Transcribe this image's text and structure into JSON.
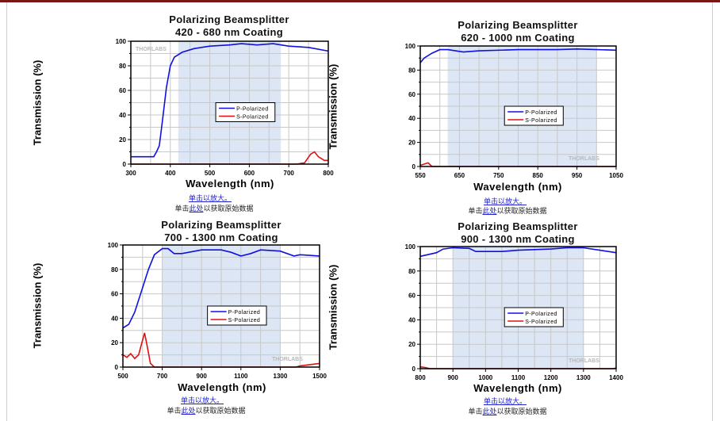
{
  "links": {
    "zoom": "单击以放大。",
    "prefix": "单击",
    "here": "此处",
    "suffix": "以获取原始数据"
  },
  "chart_data": [
    {
      "type": "line",
      "title": [
        "Polarizing Beamsplitter",
        "420 - 680 nm Coating"
      ],
      "xlabel": "Wavelength (nm)",
      "ylabel": "Transmission (%)",
      "xlim": [
        300,
        800
      ],
      "ylim": [
        0,
        100
      ],
      "xticks": [
        300,
        400,
        500,
        600,
        700,
        800
      ],
      "xgrid": [
        300,
        350,
        400,
        450,
        500,
        550,
        600,
        650,
        700,
        750,
        800
      ],
      "yticks": [
        0,
        20,
        40,
        60,
        80,
        100
      ],
      "shaded_range": [
        420,
        680
      ],
      "legend": "center-right",
      "watermark": "THORLABS",
      "series": [
        {
          "name": "P-Polarized",
          "color": "#1010e0",
          "points": [
            [
              300,
              6
            ],
            [
              358,
              6
            ],
            [
              365,
              10
            ],
            [
              372,
              15
            ],
            [
              380,
              35
            ],
            [
              390,
              62
            ],
            [
              400,
              80
            ],
            [
              410,
              87
            ],
            [
              430,
              91
            ],
            [
              460,
              94
            ],
            [
              500,
              96
            ],
            [
              550,
              97
            ],
            [
              580,
              98
            ],
            [
              620,
              97
            ],
            [
              660,
              98
            ],
            [
              700,
              96
            ],
            [
              750,
              95
            ],
            [
              800,
              92
            ]
          ]
        },
        {
          "name": "S-Polarized",
          "color": "#e01010",
          "points": [
            [
              300,
              0
            ],
            [
              720,
              0
            ],
            [
              740,
              1
            ],
            [
              755,
              8
            ],
            [
              765,
              10
            ],
            [
              775,
              6
            ],
            [
              790,
              3
            ],
            [
              800,
              3
            ]
          ]
        }
      ]
    },
    {
      "type": "line",
      "title": [
        "Polarizing Beamsplitter",
        "620 - 1000 nm Coating"
      ],
      "xlabel": "Wavelength (nm)",
      "ylabel": "Transmission (%)",
      "xlim": [
        550,
        1050
      ],
      "ylim": [
        0,
        100
      ],
      "xticks": [
        550,
        650,
        750,
        850,
        950,
        1050
      ],
      "xgrid": [
        550,
        600,
        650,
        700,
        750,
        800,
        850,
        900,
        950,
        1000,
        1050
      ],
      "yticks": [
        0,
        20,
        40,
        60,
        80,
        100
      ],
      "shaded_range": [
        620,
        1000
      ],
      "legend": "center-right",
      "watermark": "THORLABS",
      "series": [
        {
          "name": "P-Polarized",
          "color": "#1010e0",
          "points": [
            [
              550,
              86
            ],
            [
              560,
              90
            ],
            [
              580,
              94
            ],
            [
              600,
              97
            ],
            [
              620,
              97
            ],
            [
              660,
              95
            ],
            [
              700,
              96
            ],
            [
              800,
              97
            ],
            [
              900,
              97
            ],
            [
              950,
              97.5
            ],
            [
              1050,
              96.5
            ]
          ]
        },
        {
          "name": "S-Polarized",
          "color": "#e01010",
          "points": [
            [
              550,
              1
            ],
            [
              560,
              2
            ],
            [
              570,
              3
            ],
            [
              580,
              0
            ],
            [
              1050,
              0
            ]
          ]
        }
      ]
    },
    {
      "type": "line",
      "title": [
        "Polarizing Beamsplitter",
        "700 - 1300 nm Coating"
      ],
      "xlabel": "Wavelength (nm)",
      "ylabel": "Transmission (%)",
      "xlim": [
        500,
        1500
      ],
      "ylim": [
        0,
        100
      ],
      "xticks": [
        500,
        700,
        900,
        1100,
        1300,
        1500
      ],
      "xgrid": [
        500,
        600,
        700,
        800,
        900,
        1000,
        1100,
        1200,
        1300,
        1400,
        1500
      ],
      "yticks": [
        0,
        20,
        40,
        60,
        80,
        100
      ],
      "shaded_range": [
        700,
        1300
      ],
      "legend": "center-right",
      "watermark": "THORLABS",
      "series": [
        {
          "name": "P-Polarized",
          "color": "#1010e0",
          "points": [
            [
              500,
              32
            ],
            [
              530,
              35
            ],
            [
              560,
              45
            ],
            [
              600,
              65
            ],
            [
              630,
              80
            ],
            [
              660,
              92
            ],
            [
              700,
              97
            ],
            [
              730,
              97
            ],
            [
              760,
              93
            ],
            [
              800,
              93
            ],
            [
              900,
              96
            ],
            [
              1000,
              96
            ],
            [
              1050,
              94
            ],
            [
              1100,
              91
            ],
            [
              1150,
              93
            ],
            [
              1200,
              96
            ],
            [
              1300,
              95
            ],
            [
              1370,
              91
            ],
            [
              1400,
              92
            ],
            [
              1500,
              91
            ]
          ]
        },
        {
          "name": "S-Polarized",
          "color": "#e01010",
          "points": [
            [
              500,
              10
            ],
            [
              520,
              8
            ],
            [
              540,
              11
            ],
            [
              560,
              7
            ],
            [
              580,
              10
            ],
            [
              600,
              22
            ],
            [
              610,
              28
            ],
            [
              620,
              20
            ],
            [
              640,
              3
            ],
            [
              660,
              0
            ],
            [
              700,
              0
            ],
            [
              1380,
              0
            ],
            [
              1400,
              1
            ],
            [
              1450,
              2
            ],
            [
              1500,
              3
            ]
          ]
        }
      ]
    },
    {
      "type": "line",
      "title": [
        "Polarizing Beamsplitter",
        "900 - 1300 nm Coating"
      ],
      "xlabel": "Wavelength (nm)",
      "ylabel": "Transmission (%)",
      "xlim": [
        800,
        1400
      ],
      "ylim": [
        0,
        100
      ],
      "xticks": [
        800,
        900,
        1000,
        1100,
        1200,
        1300,
        1400
      ],
      "xgrid": [
        800,
        850,
        900,
        950,
        1000,
        1050,
        1100,
        1150,
        1200,
        1250,
        1300,
        1350,
        1400
      ],
      "yticks": [
        0,
        20,
        40,
        60,
        80,
        100
      ],
      "shaded_range": [
        900,
        1300
      ],
      "legend": "center-right",
      "watermark": "THORLABS",
      "series": [
        {
          "name": "P-Polarized",
          "color": "#1010e0",
          "points": [
            [
              800,
              92
            ],
            [
              850,
              95
            ],
            [
              870,
              98
            ],
            [
              900,
              99
            ],
            [
              950,
              98.5
            ],
            [
              970,
              96
            ],
            [
              980,
              96
            ],
            [
              1050,
              96
            ],
            [
              1100,
              97
            ],
            [
              1200,
              98
            ],
            [
              1250,
              99
            ],
            [
              1300,
              99
            ],
            [
              1350,
              97
            ],
            [
              1400,
              95
            ]
          ]
        },
        {
          "name": "S-Polarized",
          "color": "#e01010",
          "points": [
            [
              800,
              1.5
            ],
            [
              815,
              1
            ],
            [
              830,
              0
            ],
            [
              1390,
              0
            ],
            [
              1400,
              0.5
            ]
          ]
        }
      ]
    }
  ]
}
